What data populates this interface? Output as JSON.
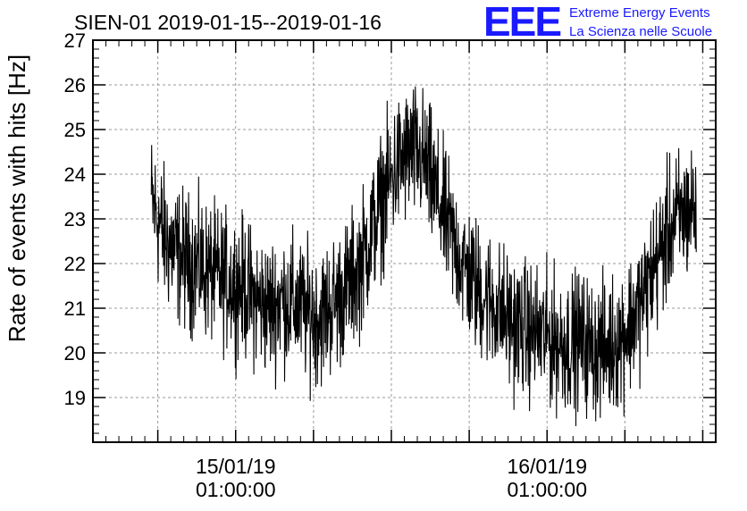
{
  "chart_data": {
    "type": "line",
    "title": "SIEN-01 2019-01-15--2019-01-16",
    "ylabel": "Rate of events with hits [Hz]",
    "xlabel": "",
    "ylim": [
      18,
      27
    ],
    "yticks": [
      19,
      20,
      21,
      22,
      23,
      24,
      25,
      26,
      27
    ],
    "xlim": [
      "2019-01-14 14:00:00",
      "2019-01-16 14:00:00"
    ],
    "xticks": [
      {
        "time": "2019-01-15 01:00:00",
        "label_date": "15/01/19",
        "label_time": "01:00:00"
      },
      {
        "time": "2019-01-16 01:00:00",
        "label_date": "16/01/19",
        "label_time": "01:00:00"
      }
    ],
    "grid": true,
    "line_color": "#000000",
    "series": [
      {
        "points": [
          [
            "2019-01-14 18:30",
            23.4
          ],
          [
            "2019-01-14 19:30",
            22.6
          ],
          [
            "2019-01-14 20:30",
            22.2
          ],
          [
            "2019-01-14 21:30",
            22.0
          ],
          [
            "2019-01-14 22:30",
            21.9
          ],
          [
            "2019-01-14 23:30",
            21.7
          ],
          [
            "2019-01-15 00:30",
            21.6
          ],
          [
            "2019-01-15 01:30",
            21.5
          ],
          [
            "2019-01-15 02:30",
            21.2
          ],
          [
            "2019-01-15 03:30",
            21.0
          ],
          [
            "2019-01-15 04:30",
            21.2
          ],
          [
            "2019-01-15 05:30",
            21.1
          ],
          [
            "2019-01-15 06:30",
            20.9
          ],
          [
            "2019-01-15 07:30",
            20.8
          ],
          [
            "2019-01-15 08:30",
            21.1
          ],
          [
            "2019-01-15 09:30",
            21.4
          ],
          [
            "2019-01-15 10:30",
            21.9
          ],
          [
            "2019-01-15 11:30",
            22.7
          ],
          [
            "2019-01-15 12:30",
            23.6
          ],
          [
            "2019-01-15 13:30",
            24.2
          ],
          [
            "2019-01-15 14:30",
            24.5
          ],
          [
            "2019-01-15 15:30",
            24.3
          ],
          [
            "2019-01-15 16:30",
            23.5
          ],
          [
            "2019-01-15 17:30",
            22.7
          ],
          [
            "2019-01-15 18:30",
            22.0
          ],
          [
            "2019-01-15 19:30",
            21.5
          ],
          [
            "2019-01-15 20:30",
            21.2
          ],
          [
            "2019-01-15 21:30",
            20.9
          ],
          [
            "2019-01-15 22:30",
            20.6
          ],
          [
            "2019-01-15 23:30",
            20.5
          ],
          [
            "2019-01-16 00:30",
            20.4
          ],
          [
            "2019-01-16 01:30",
            20.3
          ],
          [
            "2019-01-16 02:30",
            20.2
          ],
          [
            "2019-01-16 03:30",
            20.3
          ],
          [
            "2019-01-16 04:30",
            20.1
          ],
          [
            "2019-01-16 05:30",
            20.1
          ],
          [
            "2019-01-16 06:30",
            20.3
          ],
          [
            "2019-01-16 07:30",
            20.7
          ],
          [
            "2019-01-16 08:30",
            21.3
          ],
          [
            "2019-01-16 09:30",
            22.1
          ],
          [
            "2019-01-16 10:30",
            22.8
          ],
          [
            "2019-01-16 11:30",
            23.1
          ],
          [
            "2019-01-16 12:30",
            23.3
          ]
        ],
        "noise_amplitude": 0.75
      }
    ]
  },
  "logo": {
    "mark": "EEE",
    "line1": "Extreme Energy Events",
    "line2": "La Scienza nelle Scuole",
    "color": "#1a1aff"
  }
}
